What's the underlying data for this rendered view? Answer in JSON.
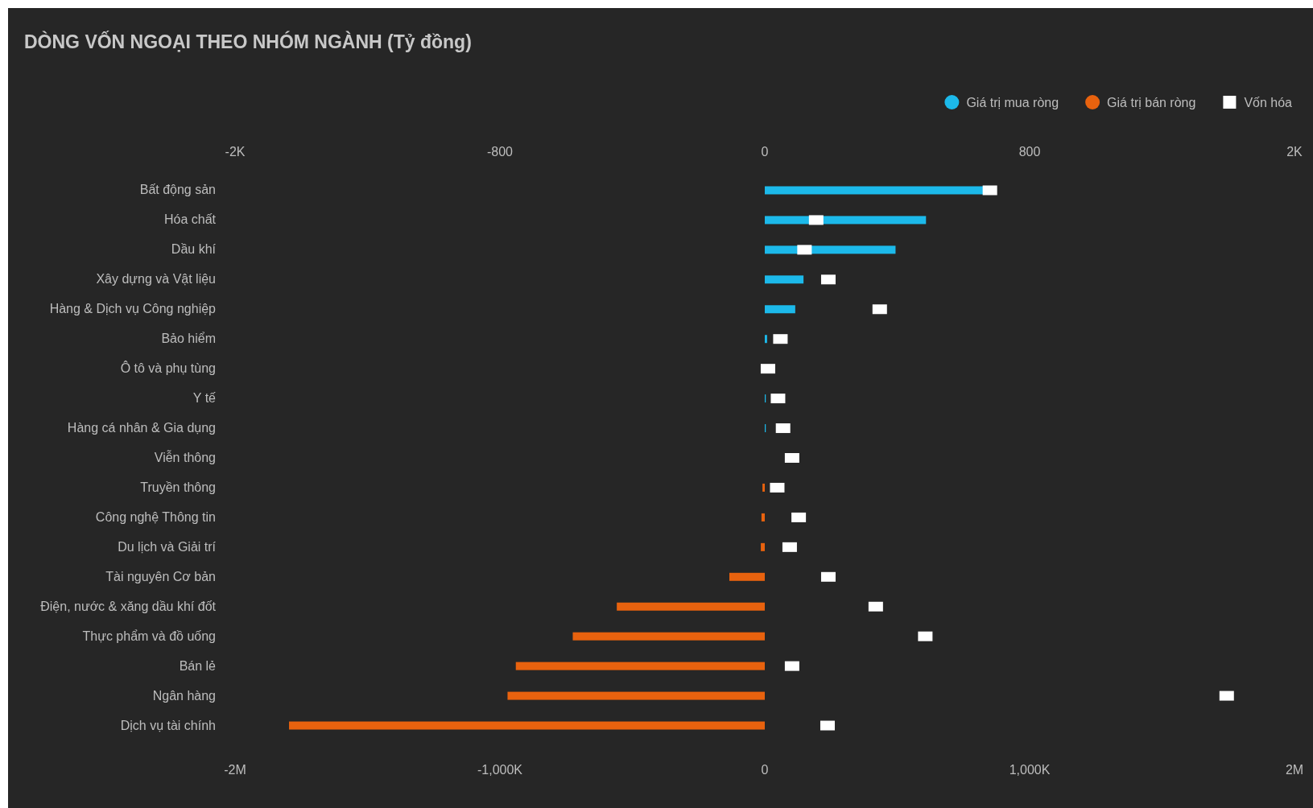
{
  "chart_data": {
    "type": "bar",
    "orientation": "horizontal",
    "title": "DÒNG VỐN NGOẠI THEO NHÓM NGÀNH (Tỷ đồng)",
    "categories": [
      "Bất động sản",
      "Hóa chất",
      "Dầu khí",
      "Xây dựng và Vật liệu",
      "Hàng & Dịch vụ Công nghiệp",
      "Bảo hiểm",
      "Ô tô và phụ tùng",
      "Y tế",
      "Hàng cá nhân & Gia dụng",
      "Viễn thông",
      "Truyền thông",
      "Công nghệ Thông tin",
      "Du lịch và Giải trí",
      "Tài nguyên Cơ bản",
      "Điện, nước & xăng dầu khí đốt",
      "Thực phẩm và đồ uống",
      "Bán lẻ",
      "Ngân hàng",
      "Dịch vụ tài chính"
    ],
    "series": [
      {
        "name": "Giá trị mua ròng",
        "axis": "x2",
        "color": "#1cb9ea",
        "values": [
          660,
          487,
          395,
          117,
          92,
          7,
          null,
          3,
          3,
          null,
          null,
          null,
          null,
          null,
          null,
          null,
          null,
          null,
          null
        ]
      },
      {
        "name": "Giá trị bán ròng",
        "axis": "x2",
        "color": "#e8620e",
        "values": [
          null,
          null,
          null,
          null,
          null,
          null,
          null,
          null,
          null,
          null,
          -7,
          -10,
          -12,
          -107,
          -447,
          -580,
          -752,
          -777,
          -1437
        ]
      },
      {
        "name": "Vốn hóa",
        "type": "scatter",
        "marker": "square",
        "color": "#ffffff",
        "values": [
          850000,
          194000,
          150000,
          240000,
          434000,
          59000,
          12000,
          50000,
          69000,
          103000,
          47000,
          128000,
          94000,
          240000,
          419000,
          606000,
          103000,
          1744000,
          237000
        ]
      }
    ],
    "x2lim": [
      -1600,
      1600
    ],
    "x2ticks": [
      {
        "value": -1600,
        "label": "-2K"
      },
      -800,
      0,
      800,
      {
        "value": 1600,
        "label": "2K"
      }
    ],
    "xlim": [
      -2000000,
      2000000
    ],
    "xticks": [
      {
        "value": -2000000,
        "label": "-2M"
      },
      {
        "value": -1000000,
        "label": "-1,000K"
      },
      0,
      {
        "value": 1000000,
        "label": "1,000K"
      },
      {
        "value": 2000000,
        "label": "2M"
      }
    ],
    "legend": "top right",
    "grid": false
  }
}
